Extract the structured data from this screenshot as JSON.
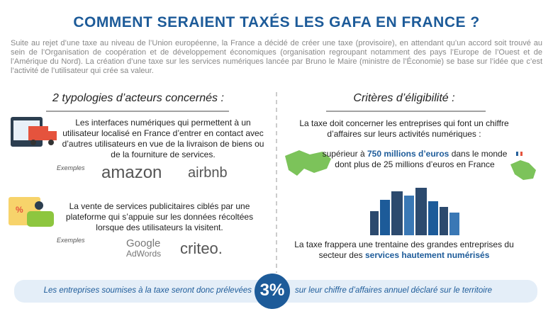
{
  "header": {
    "title": "COMMENT SERAIENT TAXÉS LES GAFA EN FRANCE ?"
  },
  "intro": "Suite au rejet d’une taxe au niveau de l’Union européenne, la France a décidé de créer une taxe (provisoire), en attendant qu’un accord soit trouvé au sein de l’Organisation de coopération et de développement économiques (organisation regroupant notamment des pays l’Europe de l’Ouest et de l’Amérique du Nord). La création d’une taxe sur les services numériques lancée par Bruno le Maire (ministre de l’Économie) se base sur l’idée que c’est l’activité de l’utilisateur qui crée sa valeur.",
  "left": {
    "heading": "2 typologies d’acteurs concernés :",
    "items": [
      {
        "text": "Les interfaces numériques qui permettent à un utilisateur localisé en France d’entrer en contact avec d’autres utilisateurs en vue de la livraison de biens ou de la fourniture de services.",
        "examples_label": "Exemples",
        "logos": [
          "amazon",
          "airbnb"
        ]
      },
      {
        "text": "La vente de services publicitaires ciblés par une plateforme qui s’appuie sur les données récoltées lorsque des utilisateurs la visitent.",
        "examples_label": "Exemples",
        "logos": [
          "Google",
          "AdWords",
          "criteo."
        ]
      }
    ]
  },
  "right": {
    "heading": "Critères d’éligibilité :",
    "criteria": "La taxe doit concerner les entreprises qui font un chiffre d’affaires sur leurs activités numériques :",
    "threshold": {
      "prefix": "supérieur à",
      "highlight": "750 millions d’euros",
      "suffix": "dans le monde",
      "line2": "dont plus de 25 millions d’euros en France"
    },
    "scope": {
      "text": "La taxe frappera une trentaine des grandes entreprises du secteur des",
      "highlight": "services hautement numérisés"
    }
  },
  "footer": {
    "before": "Les entreprises soumises à la taxe seront donc prélevées",
    "rate": "3%",
    "after": "sur leur chiffre d’affaires annuel déclaré sur le territoire"
  }
}
